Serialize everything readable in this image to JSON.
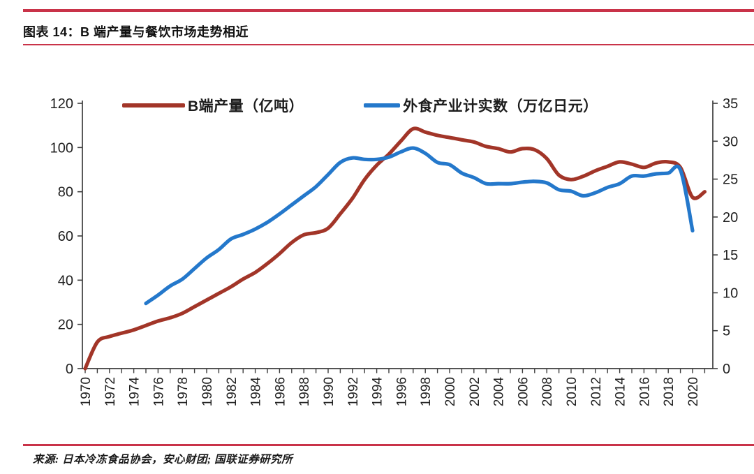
{
  "page": {
    "figure_label": "图表 14：B 端产量与餐饮市场走势相近",
    "source": "来源: 日本冷冻食品协会，安心财团; 国联证券研究所",
    "accent_color": "#c93349"
  },
  "chart_data": {
    "type": "line",
    "title": "图表 14：B 端产量与餐饮市场走势相近",
    "legend_position": "top",
    "grid": "off",
    "x_axis": {
      "range": [
        1970,
        2021
      ],
      "tick_years": [
        1970,
        1972,
        1974,
        1976,
        1978,
        1980,
        1982,
        1984,
        1986,
        1988,
        1990,
        1992,
        1994,
        1996,
        1998,
        2000,
        2002,
        2004,
        2006,
        2008,
        2010,
        2012,
        2014,
        2016,
        2018,
        2020
      ]
    },
    "left_axis": {
      "range": [
        0,
        120
      ],
      "ticks": [
        0,
        20,
        40,
        60,
        80,
        100,
        120
      ]
    },
    "right_axis": {
      "range": [
        0,
        35
      ],
      "ticks": [
        0,
        5,
        10,
        15,
        20,
        25,
        30,
        35
      ]
    },
    "series": [
      {
        "name": "B端产量（亿吨）",
        "axis": "left",
        "color": "#a23528",
        "x": [
          1970,
          1971,
          1972,
          1973,
          1974,
          1975,
          1976,
          1977,
          1978,
          1979,
          1980,
          1981,
          1982,
          1983,
          1984,
          1985,
          1986,
          1987,
          1988,
          1989,
          1990,
          1991,
          1992,
          1993,
          1994,
          1995,
          1996,
          1997,
          1998,
          1999,
          2000,
          2001,
          2002,
          2003,
          2004,
          2005,
          2006,
          2007,
          2008,
          2009,
          2010,
          2011,
          2012,
          2013,
          2014,
          2015,
          2016,
          2017,
          2018,
          2019,
          2020,
          2021
        ],
        "values": [
          0,
          12,
          14.5,
          16,
          17.5,
          19.5,
          21.5,
          23,
          25,
          28,
          31,
          34,
          37,
          40.5,
          43.5,
          47.5,
          52,
          57,
          60.5,
          61.5,
          63.5,
          70,
          77,
          85.5,
          92,
          97,
          103,
          108.5,
          107,
          105.5,
          104.5,
          103.5,
          102.5,
          100.5,
          99.5,
          98,
          99.5,
          99,
          95,
          87.5,
          85.5,
          87,
          89.5,
          91.5,
          93.5,
          92.5,
          91,
          93,
          93.5,
          91,
          77.5,
          80
        ]
      },
      {
        "name": "外食产业计实数（万亿日元）",
        "axis": "right",
        "color": "#2478cb",
        "x": [
          1975,
          1976,
          1977,
          1978,
          1979,
          1980,
          1981,
          1982,
          1983,
          1984,
          1985,
          1986,
          1987,
          1988,
          1989,
          1990,
          1991,
          1992,
          1993,
          1994,
          1995,
          1996,
          1997,
          1998,
          1999,
          2000,
          2001,
          2002,
          2003,
          2004,
          2005,
          2006,
          2007,
          2008,
          2009,
          2010,
          2011,
          2012,
          2013,
          2014,
          2015,
          2016,
          2017,
          2018,
          2019,
          2020
        ],
        "values": [
          8.6,
          9.7,
          10.9,
          11.8,
          13.2,
          14.6,
          15.7,
          17.1,
          17.7,
          18.4,
          19.3,
          20.4,
          21.6,
          22.8,
          24.0,
          25.6,
          27.2,
          27.8,
          27.6,
          27.6,
          27.9,
          28.6,
          29.1,
          28.4,
          27.2,
          26.9,
          25.8,
          25.2,
          24.4,
          24.4,
          24.4,
          24.6,
          24.7,
          24.5,
          23.6,
          23.4,
          22.8,
          23.2,
          23.9,
          24.4,
          25.4,
          25.4,
          25.7,
          25.8,
          26.2,
          18.2
        ]
      }
    ]
  }
}
